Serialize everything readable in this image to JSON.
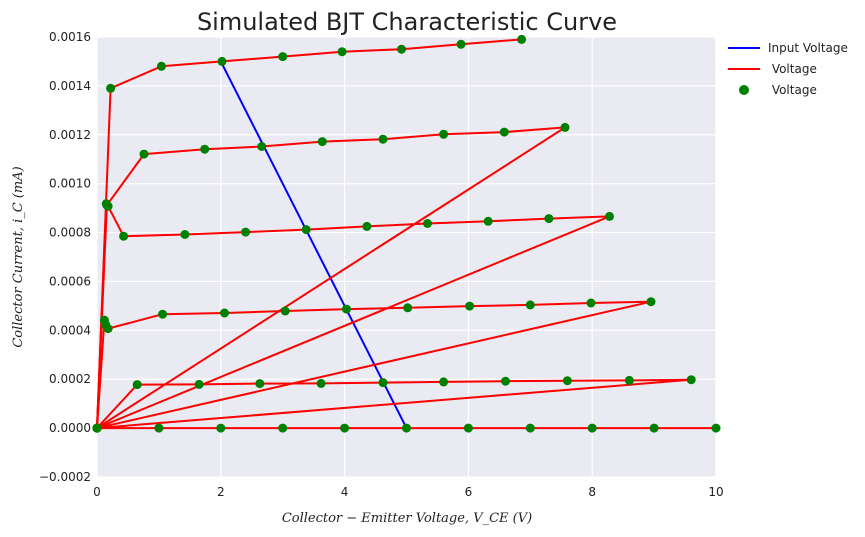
{
  "chart_data": {
    "type": "line",
    "title": "Simulated BJT Characteristic Curve",
    "xlabel": "Collector − Emitter Voltage, V_CE (V)",
    "ylabel": "Collector Current, i_C (mA)",
    "xlim": [
      0,
      10
    ],
    "ylim": [
      -0.0002,
      0.0016
    ],
    "x_ticks": [
      "0",
      "2",
      "4",
      "6",
      "8",
      "10"
    ],
    "y_ticks": [
      "−0.0002",
      "0.0000",
      "0.0002",
      "0.0004",
      "0.0006",
      "0.0008",
      "0.0010",
      "0.0012",
      "0.0014",
      "0.0016"
    ],
    "grid": true,
    "legend_position": "outside-top-right",
    "legend": [
      "Input Voltage",
      " Voltage",
      " Voltage"
    ],
    "colors": {
      "input": "#0000ff",
      "curves": "#ff0000",
      "points": "#008000",
      "background": "#eaeaf2",
      "grid": "#ffffff"
    },
    "series": [
      {
        "name": "Input Voltage",
        "style": "line",
        "x": [
          2.0,
          5.0
        ],
        "y": [
          0.0015,
          0.0
        ]
      },
      {
        "style": "line+points",
        "x": [
          0,
          1,
          2,
          3,
          4,
          5,
          6,
          7,
          8,
          9,
          10
        ],
        "y": [
          0,
          0,
          0,
          0,
          0,
          0,
          0,
          0,
          0,
          0,
          0
        ]
      },
      {
        "style": "line+points",
        "x": [
          0,
          9.6,
          8.6,
          7.6,
          6.6,
          5.6,
          4.62,
          3.62,
          2.63,
          1.65,
          0.65,
          0
        ],
        "y": [
          0,
          0.000198,
          0.000195,
          0.000194,
          0.000192,
          0.000189,
          0.000186,
          0.000183,
          0.000182,
          0.000179,
          0.000178,
          0
        ]
      },
      {
        "style": "line+points",
        "x": [
          0,
          8.95,
          7.98,
          7.0,
          6.02,
          5.02,
          4.03,
          3.04,
          2.06,
          1.06,
          0.18,
          0.14,
          0.12,
          0
        ],
        "y": [
          0,
          0.000517,
          0.000512,
          0.000504,
          0.000499,
          0.000492,
          0.000487,
          0.000479,
          0.000471,
          0.000466,
          0.000407,
          0.000423,
          0.000442,
          0
        ]
      },
      {
        "style": "line+points",
        "x": [
          0,
          8.28,
          7.3,
          6.32,
          5.34,
          4.36,
          3.38,
          2.4,
          1.42,
          0.43,
          0.18,
          0.15,
          0
        ],
        "y": [
          0,
          0.000866,
          0.000857,
          0.000846,
          0.000837,
          0.000825,
          0.000812,
          0.000802,
          0.000792,
          0.000785,
          0.000908,
          0.000918,
          0
        ]
      },
      {
        "style": "line+points",
        "x": [
          0,
          7.56,
          6.58,
          5.6,
          4.62,
          3.64,
          2.66,
          1.74,
          0.76,
          0.16,
          0
        ],
        "y": [
          0,
          0.00123,
          0.001211,
          0.001202,
          0.001182,
          0.001172,
          0.001152,
          0.001141,
          0.001121,
          0.000912,
          0
        ]
      },
      {
        "style": "line+points",
        "x": [
          0,
          0.22,
          1.04,
          2.02,
          3.0,
          3.96,
          4.92,
          5.88,
          6.86
        ],
        "y": [
          0,
          0.00139,
          0.00148,
          0.0015,
          0.00152,
          0.00154,
          0.00155,
          0.00157,
          0.00159
        ]
      }
    ]
  }
}
